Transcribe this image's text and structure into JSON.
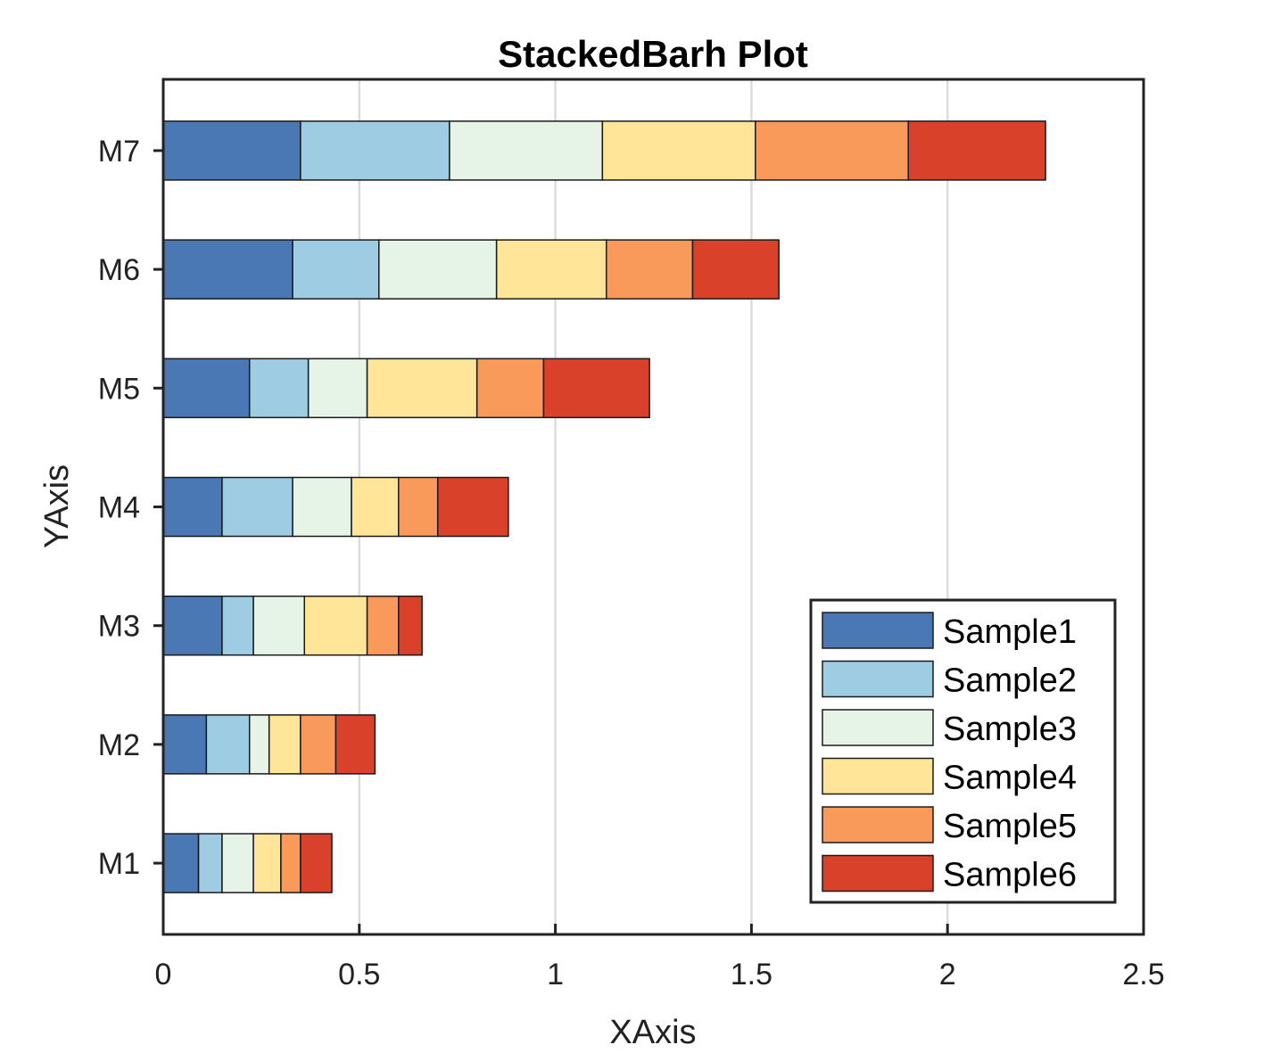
{
  "chart_data": {
    "type": "bar",
    "orientation": "horizontal",
    "stacked": true,
    "title": "StackedBarh Plot",
    "xlabel": "XAxis",
    "ylabel": "YAxis",
    "xlim": [
      0,
      2.5
    ],
    "xticks": [
      0,
      0.5,
      1,
      1.5,
      2,
      2.5
    ],
    "xtick_labels": [
      "0",
      "0.5",
      "1",
      "1.5",
      "2",
      "2.5"
    ],
    "grid": "vertical",
    "legend_position": "bottom-right",
    "categories": [
      "M1",
      "M2",
      "M3",
      "M4",
      "M5",
      "M6",
      "M7"
    ],
    "series": [
      {
        "name": "Sample1",
        "color": "#4a78b5",
        "values": [
          0.09,
          0.11,
          0.15,
          0.15,
          0.22,
          0.33,
          0.35
        ]
      },
      {
        "name": "Sample2",
        "color": "#9ecde3",
        "values": [
          0.06,
          0.11,
          0.08,
          0.18,
          0.15,
          0.22,
          0.38
        ]
      },
      {
        "name": "Sample3",
        "color": "#e6f4e8",
        "values": [
          0.08,
          0.05,
          0.13,
          0.15,
          0.15,
          0.3,
          0.39
        ]
      },
      {
        "name": "Sample4",
        "color": "#fee598",
        "values": [
          0.07,
          0.08,
          0.16,
          0.12,
          0.28,
          0.28,
          0.39
        ]
      },
      {
        "name": "Sample5",
        "color": "#f99a5a",
        "values": [
          0.05,
          0.09,
          0.08,
          0.1,
          0.17,
          0.22,
          0.39
        ]
      },
      {
        "name": "Sample6",
        "color": "#d9412b",
        "values": [
          0.08,
          0.1,
          0.06,
          0.18,
          0.27,
          0.22,
          0.35
        ]
      }
    ]
  }
}
